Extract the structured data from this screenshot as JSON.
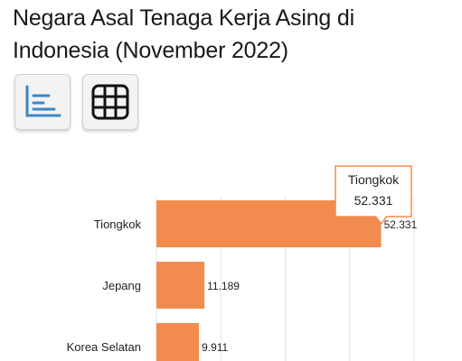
{
  "header": {
    "title": "Negara Asal Tenaga Kerja Asing di Indonesia (November 2022)"
  },
  "toolbar": {
    "chart_view_icon": "bar-chart-icon",
    "table_view_icon": "table-grid-icon"
  },
  "tooltip": {
    "category": "Tiongkok",
    "value": "52.331"
  },
  "colors": {
    "bar": "#f28c4e",
    "accent": "#3a87c8",
    "tooltip_border": "#f28c4e",
    "grid": "#e3e3e3"
  },
  "chart_data": {
    "type": "bar",
    "orientation": "horizontal",
    "title": "Negara Asal Tenaga Kerja Asing di Indonesia (November 2022)",
    "categories": [
      "Tiongkok",
      "Jepang",
      "Korea Selatan"
    ],
    "values": [
      52331,
      11189,
      9911
    ],
    "value_labels": [
      "52.331",
      "11.189",
      "9.911"
    ],
    "xlabel": "",
    "ylabel": "",
    "xlim": [
      0,
      60000
    ],
    "grid": true,
    "legend": "none"
  }
}
